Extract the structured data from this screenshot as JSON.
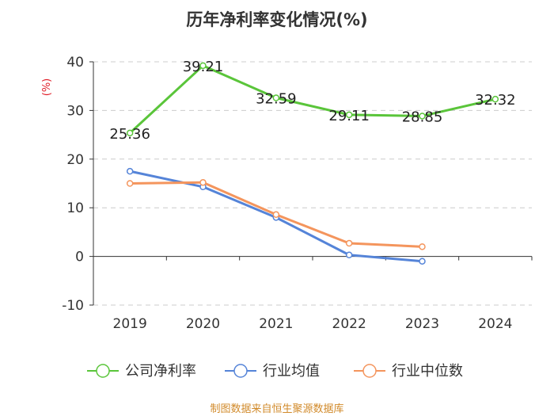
{
  "colors": {
    "company": "#5ac53a",
    "industry_avg": "#5584d8",
    "industry_median": "#f4955d",
    "grid": "#cccccc",
    "axis": "#333333"
  },
  "chart_data": {
    "type": "line",
    "title": "历年净利率变化情况(%)",
    "unit_label": "(%)",
    "categories": [
      "2019",
      "2020",
      "2021",
      "2022",
      "2023",
      "2024"
    ],
    "ylim": [
      -10,
      40
    ],
    "yticks": [
      -10,
      0,
      10,
      20,
      30,
      40
    ],
    "grid": true,
    "legend_position": "bottom",
    "series": [
      {
        "name": "公司净利率",
        "key": "company",
        "values": [
          25.36,
          39.21,
          32.59,
          29.11,
          28.85,
          32.32
        ],
        "labels": [
          "25.36",
          "39.21",
          "32.59",
          "29.11",
          "28.85",
          "32.32"
        ]
      },
      {
        "name": "行业均值",
        "key": "industry_avg",
        "values": [
          17.5,
          14.3,
          8.0,
          0.3,
          -1.0,
          null
        ]
      },
      {
        "name": "行业中位数",
        "key": "industry_median",
        "values": [
          15.0,
          15.2,
          8.6,
          2.7,
          2.0,
          null
        ]
      }
    ]
  },
  "source_text": "制图数据来自恒生聚源数据库"
}
